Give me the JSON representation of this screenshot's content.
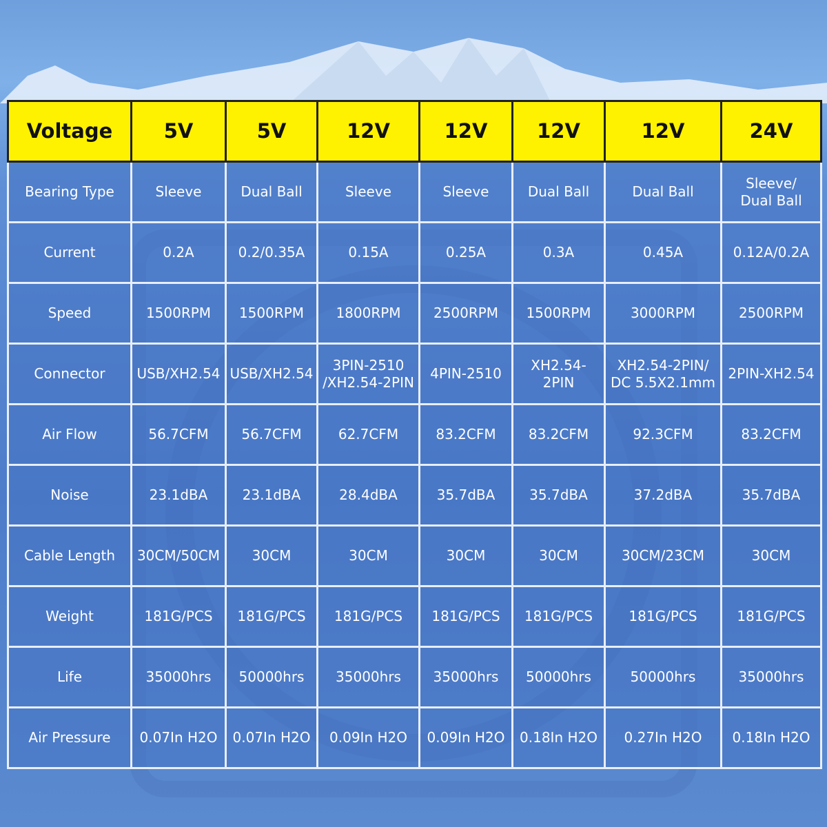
{
  "table": {
    "header": [
      "Voltage",
      "5V",
      "5V",
      "12V",
      "12V",
      "12V",
      "12V",
      "24V"
    ],
    "rows": [
      [
        "Bearing Type",
        "Sleeve",
        "Dual Ball",
        "Sleeve",
        "Sleeve",
        "Dual Ball",
        "Dual Ball",
        "Sleeve/\nDual Ball"
      ],
      [
        "Current",
        "0.2A",
        "0.2/0.35A",
        "0.15A",
        "0.25A",
        "0.3A",
        "0.45A",
        "0.12A/0.2A"
      ],
      [
        "Speed",
        "1500RPM",
        "1500RPM",
        "1800RPM",
        "2500RPM",
        "1500RPM",
        "3000RPM",
        "2500RPM"
      ],
      [
        "Connector",
        "USB/XH2.54",
        "USB/XH2.54",
        "3PIN-2510\n/XH2.54-2PIN",
        "4PIN-2510",
        "XH2.54-\n2PIN",
        "XH2.54-2PIN/\nDC 5.5X2.1mm",
        "2PIN-XH2.54"
      ],
      [
        "Air Flow",
        "56.7CFM",
        "56.7CFM",
        "62.7CFM",
        "83.2CFM",
        "83.2CFM",
        "92.3CFM",
        "83.2CFM"
      ],
      [
        "Noise",
        "23.1dBA",
        "23.1dBA",
        "28.4dBA",
        "35.7dBA",
        "35.7dBA",
        "37.2dBA",
        "35.7dBA"
      ],
      [
        "Cable Length",
        "30CM/50CM",
        "30CM",
        "30CM",
        "30CM",
        "30CM",
        "30CM/23CM",
        "30CM"
      ],
      [
        "Weight",
        "181G/PCS",
        "181G/PCS",
        "181G/PCS",
        "181G/PCS",
        "181G/PCS",
        "181G/PCS",
        "181G/PCS"
      ],
      [
        "Life",
        "35000hrs",
        "50000hrs",
        "35000hrs",
        "35000hrs",
        "50000hrs",
        "50000hrs",
        "35000hrs"
      ],
      [
        "Air Pressure",
        "0.07In H2O",
        "0.07In H2O",
        "0.09In H2O",
        "0.09In H2O",
        "0.18In H2O",
        "0.27In H2O",
        "0.18In H2O"
      ]
    ]
  }
}
